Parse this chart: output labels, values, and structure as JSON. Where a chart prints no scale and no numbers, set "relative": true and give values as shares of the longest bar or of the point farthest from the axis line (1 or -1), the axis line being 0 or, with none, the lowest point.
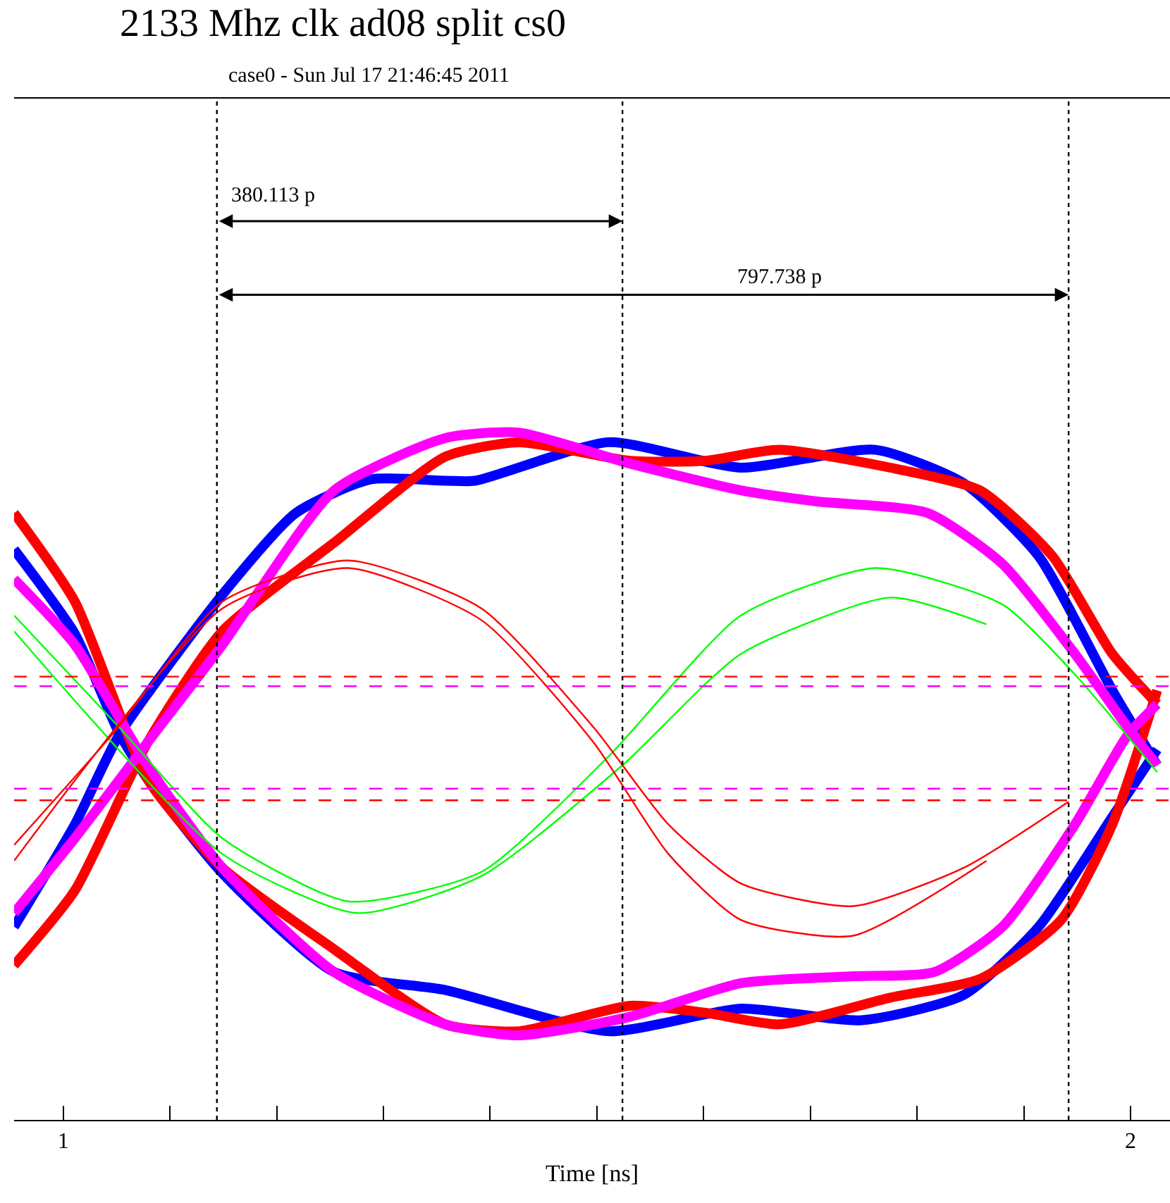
{
  "chart_data": {
    "type": "line",
    "title": "2133 Mhz clk ad08 split cs0",
    "subtitle": "case0 - Sun Jul 17 21:46:45 2011",
    "xlabel": "Time [ns]",
    "relative": true,
    "xlim": [
      0.954,
      2.037
    ],
    "xticks": [
      1,
      {
        "value": 1.1,
        "label": null
      },
      {
        "value": 1.2,
        "label": null
      },
      {
        "value": 1.3,
        "label": null
      },
      {
        "value": 1.4,
        "label": null
      },
      {
        "value": 1.5,
        "label": null
      },
      {
        "value": 1.6,
        "label": null
      },
      {
        "value": 1.7,
        "label": null
      },
      {
        "value": 1.8,
        "label": null
      },
      {
        "value": 1.9,
        "label": null
      },
      2
    ],
    "marker": "none",
    "line_style": "solid",
    "series": [
      {
        "color": "#0000ff",
        "x": [
          0.954,
          1.011,
          1.052,
          1.149,
          1.218,
          1.288,
          1.358,
          1.386,
          1.511,
          1.635,
          1.761,
          1.844,
          1.914,
          1.983,
          2.025
        ],
        "values": [
          0.281,
          0.43,
          0.559,
          0.764,
          0.883,
          0.932,
          0.93,
          0.93,
          0.986,
          0.949,
          0.975,
          0.926,
          0.82,
          0.625,
          0.516
        ]
      },
      {
        "color": "#0000ff",
        "x": [
          0.954,
          1.011,
          1.052,
          1.079,
          1.149,
          1.254,
          1.358,
          1.511,
          1.635,
          1.748,
          1.844,
          1.914,
          1.983,
          2.025
        ],
        "values": [
          0.83,
          0.707,
          0.564,
          0.496,
          0.359,
          0.215,
          0.189,
          0.129,
          0.162,
          0.145,
          0.182,
          0.281,
          0.441,
          0.539
        ]
      },
      {
        "color": "#ff0000",
        "x": [
          0.954,
          1.011,
          1.079,
          1.149,
          1.254,
          1.358,
          1.427,
          1.531,
          1.601,
          1.671,
          1.775,
          1.859,
          1.927,
          1.983,
          2.025
        ],
        "values": [
          0.225,
          0.334,
          0.549,
          0.711,
          0.84,
          0.965,
          0.986,
          0.959,
          0.959,
          0.975,
          0.949,
          0.916,
          0.82,
          0.678,
          0.605
        ]
      },
      {
        "color": "#ff0000",
        "x": [
          0.954,
          1.011,
          1.079,
          1.149,
          1.254,
          1.358,
          1.427,
          1.531,
          1.601,
          1.671,
          1.775,
          1.859,
          1.935,
          1.983,
          2.025
        ],
        "values": [
          0.883,
          0.754,
          0.496,
          0.367,
          0.248,
          0.139,
          0.129,
          0.166,
          0.156,
          0.139,
          0.178,
          0.205,
          0.291,
          0.43,
          0.625
        ]
      },
      {
        "color": "#ff00ff",
        "x": [
          0.954,
          1.011,
          1.079,
          1.149,
          1.254,
          1.358,
          1.427,
          1.531,
          1.635,
          1.705,
          1.81,
          1.88,
          1.948,
          1.997,
          2.025
        ],
        "values": [
          0.301,
          0.41,
          0.549,
          0.691,
          0.916,
          0.992,
          1.0,
          0.955,
          0.916,
          0.9,
          0.883,
          0.809,
          0.678,
          0.572,
          0.516
        ]
      },
      {
        "color": "#ff00ff",
        "x": [
          0.954,
          1.011,
          1.079,
          1.149,
          1.254,
          1.358,
          1.427,
          1.531,
          1.635,
          1.74,
          1.816,
          1.88,
          1.948,
          1.997,
          2.025
        ],
        "values": [
          0.787,
          0.691,
          0.516,
          0.367,
          0.215,
          0.139,
          0.123,
          0.15,
          0.199,
          0.209,
          0.215,
          0.281,
          0.43,
          0.559,
          0.605
        ]
      },
      {
        "color": "#00ff00",
        "x": [
          0.954,
          1.052,
          1.149,
          1.267,
          1.392,
          1.511,
          1.635,
          1.761,
          1.88,
          1.948,
          2.025
        ],
        "values": [
          0.734,
          0.572,
          0.41,
          0.318,
          0.361,
          0.529,
          0.734,
          0.803,
          0.75,
          0.648,
          0.506
        ]
      },
      {
        "color": "#00ff00",
        "x": [
          0.954,
          1.149,
          1.275,
          1.392,
          1.524,
          1.635,
          1.775,
          1.865
        ],
        "values": [
          0.711,
          0.387,
          0.301,
          0.355,
          0.516,
          0.678,
          0.76,
          0.721
        ]
      },
      {
        "color": "#ff0000",
        "x": [
          0.954,
          1.045,
          1.149,
          1.267,
          1.392,
          1.497,
          1.567,
          1.635,
          1.74,
          1.844,
          1.942
        ],
        "values": [
          0.4,
          0.559,
          0.754,
          0.814,
          0.744,
          0.571,
          0.43,
          0.344,
          0.311,
          0.367,
          0.463
        ]
      },
      {
        "color": "#ff0000",
        "x": [
          0.954,
          1.149,
          1.267,
          1.392,
          1.497,
          1.567,
          1.635,
          1.74,
          1.865
        ],
        "values": [
          0.377,
          0.744,
          0.803,
          0.727,
          0.549,
          0.387,
          0.291,
          0.268,
          0.377
        ]
      }
    ],
    "ref_lines": [
      {
        "axis": "x",
        "value": 1.144,
        "color": "#000000",
        "line_style": "dotted"
      },
      {
        "axis": "x",
        "value": 1.524,
        "color": "#000000",
        "line_style": "dotted"
      },
      {
        "axis": "x",
        "value": 1.942,
        "color": "#000000",
        "line_style": "dotted"
      },
      {
        "axis": "y",
        "value": 0.645,
        "color": "#ff0000",
        "line_style": "dashed"
      },
      {
        "axis": "y",
        "value": 0.631,
        "color": "#ff00ff",
        "line_style": "dashed"
      },
      {
        "axis": "y",
        "value": 0.482,
        "color": "#ff00ff",
        "line_style": "dashed"
      },
      {
        "axis": "y",
        "value": 0.465,
        "color": "#ff0000",
        "line_style": "dashed"
      }
    ],
    "annotations": [
      "380.113 p",
      "797.738 p"
    ]
  }
}
